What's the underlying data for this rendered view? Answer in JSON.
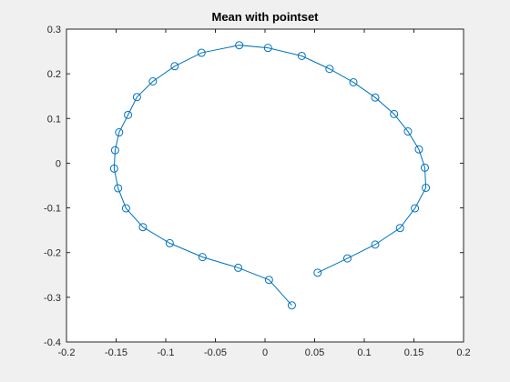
{
  "chart_data": {
    "type": "line",
    "title": "Mean with pointset",
    "xlabel": "",
    "ylabel": "",
    "xlim": [
      -0.2,
      0.2
    ],
    "ylim": [
      -0.4,
      0.3
    ],
    "grid": false,
    "marker": "circle",
    "color": "#0072BD",
    "x_ticks": [
      -0.2,
      -0.15,
      -0.1,
      -0.05,
      0,
      0.05,
      0.1,
      0.15,
      0.2
    ],
    "x_tick_labels": [
      "-0.2",
      "-0.15",
      "-0.1",
      "-0.05",
      "0",
      "0.05",
      "0.1",
      "0.15",
      "0.2"
    ],
    "y_ticks": [
      -0.4,
      -0.3,
      -0.2,
      -0.1,
      0,
      0.1,
      0.2,
      0.3
    ],
    "y_tick_labels": [
      "-0.4",
      "-0.3",
      "-0.2",
      "-0.1",
      "0",
      "0.1",
      "0.2",
      "0.3"
    ],
    "series": [
      {
        "x": [
          0.053,
          0.083,
          0.111,
          0.136,
          0.151,
          0.162,
          0.161,
          0.155,
          0.144,
          0.13,
          0.111,
          0.089,
          0.065,
          0.037,
          0.003,
          -0.026,
          -0.064,
          -0.091,
          -0.113,
          -0.129,
          -0.138,
          -0.147,
          -0.151,
          -0.152,
          -0.148,
          -0.14,
          -0.123,
          -0.096,
          -0.063,
          -0.027,
          0.004,
          0.027
        ],
        "y": [
          -0.245,
          -0.213,
          -0.182,
          -0.145,
          -0.101,
          -0.055,
          -0.01,
          0.031,
          0.071,
          0.11,
          0.147,
          0.181,
          0.211,
          0.24,
          0.258,
          0.264,
          0.247,
          0.217,
          0.183,
          0.148,
          0.108,
          0.069,
          0.029,
          -0.012,
          -0.056,
          -0.101,
          -0.143,
          -0.179,
          -0.21,
          -0.234,
          -0.261,
          -0.318
        ]
      }
    ]
  }
}
